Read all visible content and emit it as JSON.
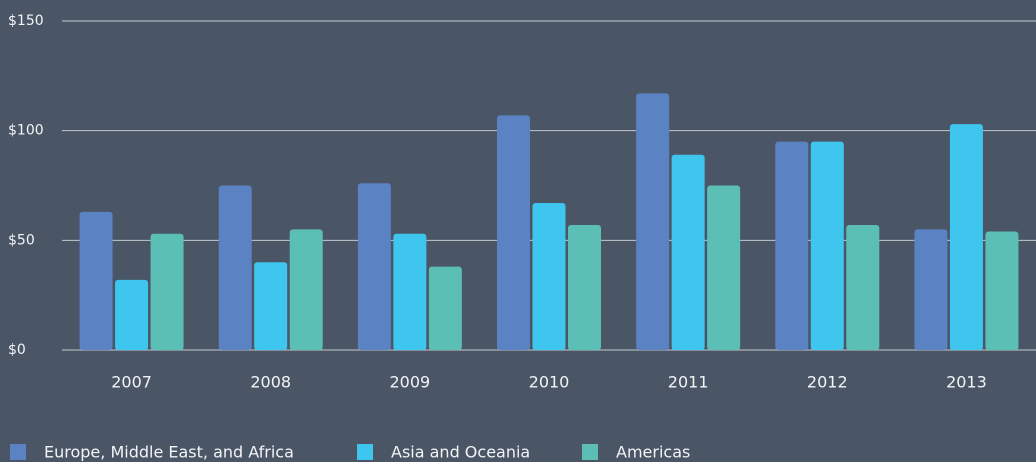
{
  "chart_data": {
    "type": "bar",
    "categories": [
      "2007",
      "2008",
      "2009",
      "2010",
      "2011",
      "2012",
      "2013"
    ],
    "series": [
      {
        "name": "Europe, Middle East, and Africa",
        "color": "#5b82c3",
        "values": [
          63,
          75,
          76,
          107,
          117,
          95,
          55
        ]
      },
      {
        "name": "Asia and Oceania",
        "color": "#3ec6ef",
        "values": [
          32,
          40,
          53,
          67,
          89,
          95,
          103
        ]
      },
      {
        "name": "Americas",
        "color": "#5bbfb5",
        "values": [
          53,
          55,
          38,
          57,
          75,
          57,
          54
        ]
      }
    ],
    "ylim": [
      0,
      150
    ],
    "yticks": [
      {
        "value": 0,
        "label": "$0"
      },
      {
        "value": 50,
        "label": "$50"
      },
      {
        "value": 100,
        "label": "$100"
      },
      {
        "value": 150,
        "label": "$150"
      }
    ],
    "grid": true,
    "legend": "bottom"
  }
}
